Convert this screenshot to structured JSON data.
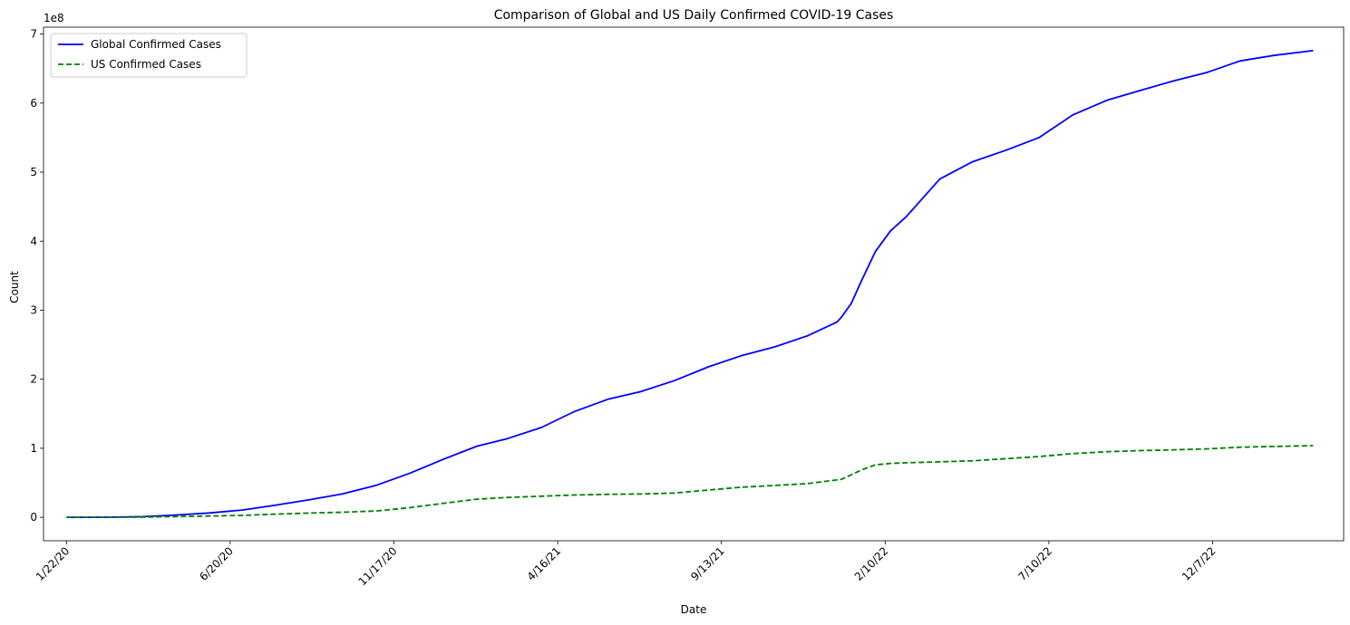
{
  "chart_data": {
    "type": "line",
    "title": "Comparison of Global and US Daily Confirmed COVID-19 Cases",
    "xlabel": "Date",
    "ylabel": "Count",
    "y_offset_label": "1e8",
    "y_scale": 100000000,
    "x_tick_labels": [
      "1/22/20",
      "6/20/20",
      "11/17/20",
      "4/16/21",
      "9/13/21",
      "2/10/22",
      "7/10/22",
      "12/7/22"
    ],
    "y_tick_labels": [
      "0",
      "1",
      "2",
      "3",
      "4",
      "5",
      "6",
      "7"
    ],
    "y_ticks": [
      0,
      100000000,
      200000000,
      300000000,
      400000000,
      500000000,
      600000000,
      700000000
    ],
    "xlim": [
      "2020-01-01",
      "2023-04-06"
    ],
    "ylim": [
      -34000000,
      710000000
    ],
    "legend_position": "upper-left",
    "grid": false,
    "series": [
      {
        "name": "Global Confirmed Cases",
        "color": "#0000ff",
        "style": "solid",
        "points": [
          [
            "2020-01-22",
            0
          ],
          [
            "2020-03-01",
            100000
          ],
          [
            "2020-04-01",
            900000
          ],
          [
            "2020-05-01",
            3300000
          ],
          [
            "2020-06-01",
            6300000
          ],
          [
            "2020-07-01",
            10500000
          ],
          [
            "2020-08-01",
            17700000
          ],
          [
            "2020-09-01",
            25600000
          ],
          [
            "2020-10-01",
            34000000
          ],
          [
            "2020-11-01",
            46500000
          ],
          [
            "2020-12-01",
            63500000
          ],
          [
            "2021-01-01",
            83800000
          ],
          [
            "2021-02-01",
            103000000
          ],
          [
            "2021-03-01",
            114000000
          ],
          [
            "2021-04-01",
            130000000
          ],
          [
            "2021-05-01",
            153000000
          ],
          [
            "2021-06-01",
            171000000
          ],
          [
            "2021-07-01",
            182000000
          ],
          [
            "2021-08-01",
            198000000
          ],
          [
            "2021-09-01",
            218000000
          ],
          [
            "2021-10-01",
            234000000
          ],
          [
            "2021-11-01",
            247000000
          ],
          [
            "2021-12-01",
            263000000
          ],
          [
            "2021-12-28",
            283000000
          ],
          [
            "2022-01-01",
            290000000
          ],
          [
            "2022-01-10",
            310000000
          ],
          [
            "2022-01-20",
            345000000
          ],
          [
            "2022-02-01",
            385000000
          ],
          [
            "2022-02-15",
            415000000
          ],
          [
            "2022-03-01",
            435000000
          ],
          [
            "2022-04-01",
            490000000
          ],
          [
            "2022-05-01",
            515000000
          ],
          [
            "2022-06-01",
            532000000
          ],
          [
            "2022-07-01",
            550000000
          ],
          [
            "2022-08-01",
            583000000
          ],
          [
            "2022-09-01",
            604000000
          ],
          [
            "2022-10-01",
            618000000
          ],
          [
            "2022-11-01",
            632000000
          ],
          [
            "2022-12-01",
            644000000
          ],
          [
            "2023-01-01",
            661000000
          ],
          [
            "2023-02-01",
            669000000
          ],
          [
            "2023-03-09",
            676000000
          ]
        ]
      },
      {
        "name": "US Confirmed Cases",
        "color": "#008000",
        "style": "dashed",
        "points": [
          [
            "2020-01-22",
            0
          ],
          [
            "2020-03-01",
            0
          ],
          [
            "2020-04-01",
            200000
          ],
          [
            "2020-05-01",
            1100000
          ],
          [
            "2020-06-01",
            1800000
          ],
          [
            "2020-07-01",
            2700000
          ],
          [
            "2020-08-01",
            4600000
          ],
          [
            "2020-09-01",
            6100000
          ],
          [
            "2020-10-01",
            7300000
          ],
          [
            "2020-11-01",
            9200000
          ],
          [
            "2020-12-01",
            13900000
          ],
          [
            "2021-01-01",
            20200000
          ],
          [
            "2021-02-01",
            26200000
          ],
          [
            "2021-03-01",
            28700000
          ],
          [
            "2021-04-01",
            30500000
          ],
          [
            "2021-05-01",
            32300000
          ],
          [
            "2021-06-01",
            33300000
          ],
          [
            "2021-07-01",
            33700000
          ],
          [
            "2021-08-01",
            35200000
          ],
          [
            "2021-09-01",
            39500000
          ],
          [
            "2021-10-01",
            43600000
          ],
          [
            "2021-11-01",
            46200000
          ],
          [
            "2021-12-01",
            48800000
          ],
          [
            "2022-01-01",
            55000000
          ],
          [
            "2022-01-20",
            69000000
          ],
          [
            "2022-02-01",
            76000000
          ],
          [
            "2022-02-15",
            78000000
          ],
          [
            "2022-03-01",
            79000000
          ],
          [
            "2022-04-01",
            80300000
          ],
          [
            "2022-05-01",
            81800000
          ],
          [
            "2022-06-01",
            84900000
          ],
          [
            "2022-07-01",
            88000000
          ],
          [
            "2022-08-01",
            92200000
          ],
          [
            "2022-09-01",
            95000000
          ],
          [
            "2022-10-01",
            96500000
          ],
          [
            "2022-11-01",
            97700000
          ],
          [
            "2022-12-01",
            99000000
          ],
          [
            "2023-01-01",
            101500000
          ],
          [
            "2023-02-01",
            102600000
          ],
          [
            "2023-03-09",
            103800000
          ]
        ]
      }
    ]
  }
}
